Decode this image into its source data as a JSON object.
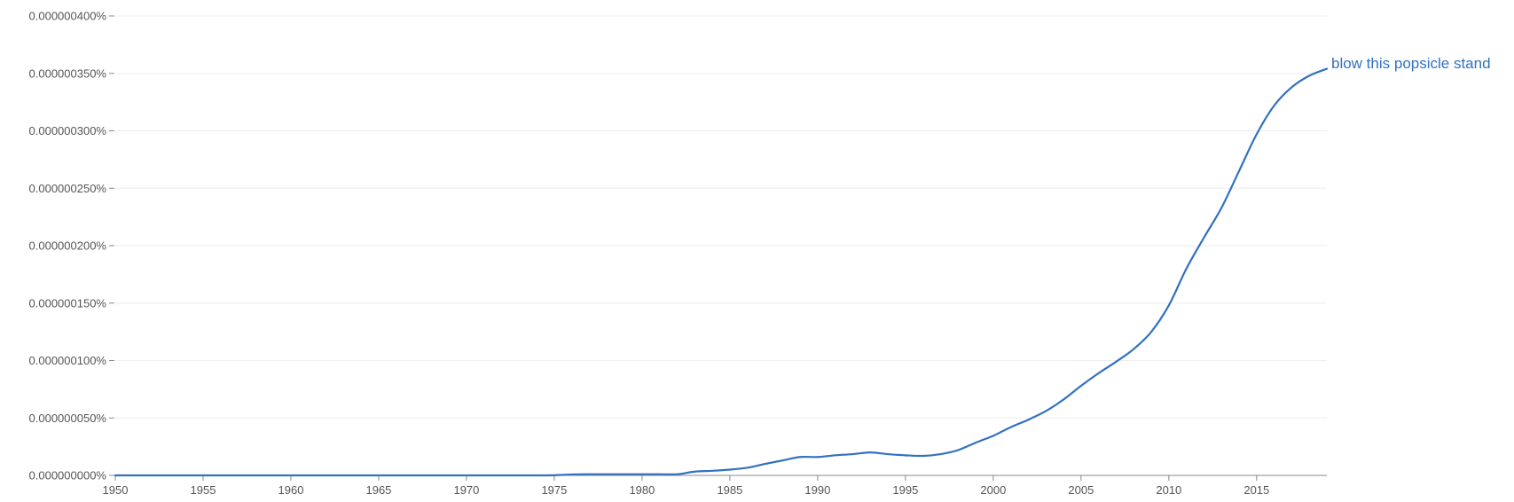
{
  "chart_data": {
    "type": "line",
    "title": "",
    "xlabel": "",
    "ylabel": "",
    "xlim": [
      1950,
      2019
    ],
    "ylim": [
      0,
      4e-07
    ],
    "grid": true,
    "y_ticks": [
      {
        "value": 0,
        "label": "0.000000000%"
      },
      {
        "value": 5e-08,
        "label": "0.000000050%"
      },
      {
        "value": 1e-07,
        "label": "0.000000100%"
      },
      {
        "value": 1.5e-07,
        "label": "0.000000150%"
      },
      {
        "value": 2e-07,
        "label": "0.000000200%"
      },
      {
        "value": 2.5e-07,
        "label": "0.000000250%"
      },
      {
        "value": 3e-07,
        "label": "0.000000300%"
      },
      {
        "value": 3.5e-07,
        "label": "0.000000350%"
      },
      {
        "value": 4e-07,
        "label": "0.000000400%"
      }
    ],
    "x_ticks": [
      {
        "value": 1950,
        "label": "1950"
      },
      {
        "value": 1955,
        "label": "1955"
      },
      {
        "value": 1960,
        "label": "1960"
      },
      {
        "value": 1965,
        "label": "1965"
      },
      {
        "value": 1970,
        "label": "1970"
      },
      {
        "value": 1975,
        "label": "1975"
      },
      {
        "value": 1980,
        "label": "1980"
      },
      {
        "value": 1985,
        "label": "1985"
      },
      {
        "value": 1990,
        "label": "1990"
      },
      {
        "value": 1995,
        "label": "1995"
      },
      {
        "value": 2000,
        "label": "2000"
      },
      {
        "value": 2005,
        "label": "2005"
      },
      {
        "value": 2010,
        "label": "2010"
      },
      {
        "value": 2015,
        "label": "2015"
      }
    ],
    "series": [
      {
        "name": "blow this popsicle stand",
        "color": "#3271c1",
        "x": [
          1950,
          1951,
          1952,
          1953,
          1954,
          1955,
          1956,
          1957,
          1958,
          1959,
          1960,
          1961,
          1962,
          1963,
          1964,
          1965,
          1966,
          1967,
          1968,
          1969,
          1970,
          1971,
          1972,
          1973,
          1974,
          1975,
          1976,
          1977,
          1978,
          1979,
          1980,
          1981,
          1982,
          1983,
          1984,
          1985,
          1986,
          1987,
          1988,
          1989,
          1990,
          1991,
          1992,
          1993,
          1994,
          1995,
          1996,
          1997,
          1998,
          1999,
          2000,
          2001,
          2002,
          2003,
          2004,
          2005,
          2006,
          2007,
          2008,
          2009,
          2010,
          2011,
          2012,
          2013,
          2014,
          2015,
          2016,
          2017,
          2018,
          2019
        ],
        "y": [
          0,
          0,
          0,
          0,
          0,
          0,
          0,
          0,
          0,
          0,
          0,
          0,
          0,
          0,
          0,
          0,
          0,
          0,
          0,
          0,
          0,
          0,
          0,
          0,
          0,
          1e-10,
          8e-10,
          1e-09,
          1e-09,
          1e-09,
          1e-09,
          1e-09,
          1e-09,
          3.3e-09,
          4e-09,
          5e-09,
          6.7e-09,
          1e-08,
          1.3e-08,
          1.6e-08,
          1.6e-08,
          1.75e-08,
          1.85e-08,
          2e-08,
          1.85e-08,
          1.75e-08,
          1.7e-08,
          1.85e-08,
          2.2e-08,
          2.85e-08,
          3.45e-08,
          4.2e-08,
          4.85e-08,
          5.6e-08,
          6.6e-08,
          7.8e-08,
          8.9e-08,
          9.9e-08,
          1.1e-07,
          1.25e-07,
          1.48e-07,
          1.8e-07,
          2.07e-07,
          2.33e-07,
          2.65e-07,
          2.97e-07,
          3.22e-07,
          3.38e-07,
          3.48e-07,
          3.54e-07
        ]
      }
    ]
  }
}
